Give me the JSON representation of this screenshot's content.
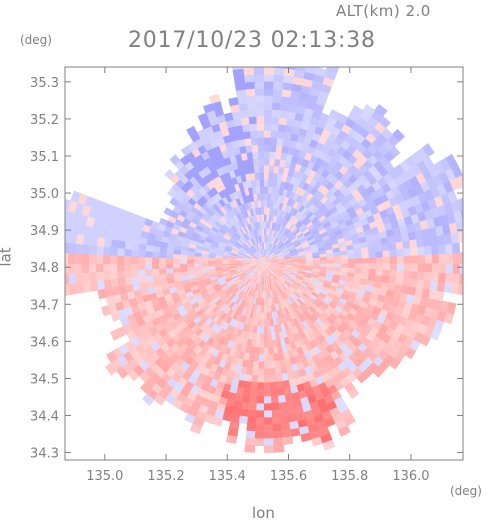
{
  "header": {
    "altitude_label": "ALT(km) 2.0",
    "timestamp": "2017/10/23 02:13:38"
  },
  "chart_data": {
    "type": "heatmap",
    "xlabel": "lon",
    "ylabel": "lat",
    "x_unit": "(deg)",
    "y_unit": "(deg)",
    "xlim": [
      134.87,
      136.17
    ],
    "ylim": [
      34.28,
      35.34
    ],
    "x_ticks": [
      "135.0",
      "135.2",
      "135.4",
      "135.6",
      "135.8",
      "136.0"
    ],
    "y_ticks": [
      "35.3",
      "35.2",
      "35.1",
      "35.0",
      "34.9",
      "34.8",
      "34.7",
      "34.6",
      "34.5",
      "34.4",
      "34.3"
    ],
    "radar_center": [
      135.52,
      34.81
    ],
    "colormap": {
      "negative": "#7b7bff",
      "zero": "#ffffff",
      "positive": "#ff6f6f"
    },
    "field_pattern": "north half mostly negative (blue), south half mostly positive (red), strongest red near 135.6E 34.38N"
  }
}
